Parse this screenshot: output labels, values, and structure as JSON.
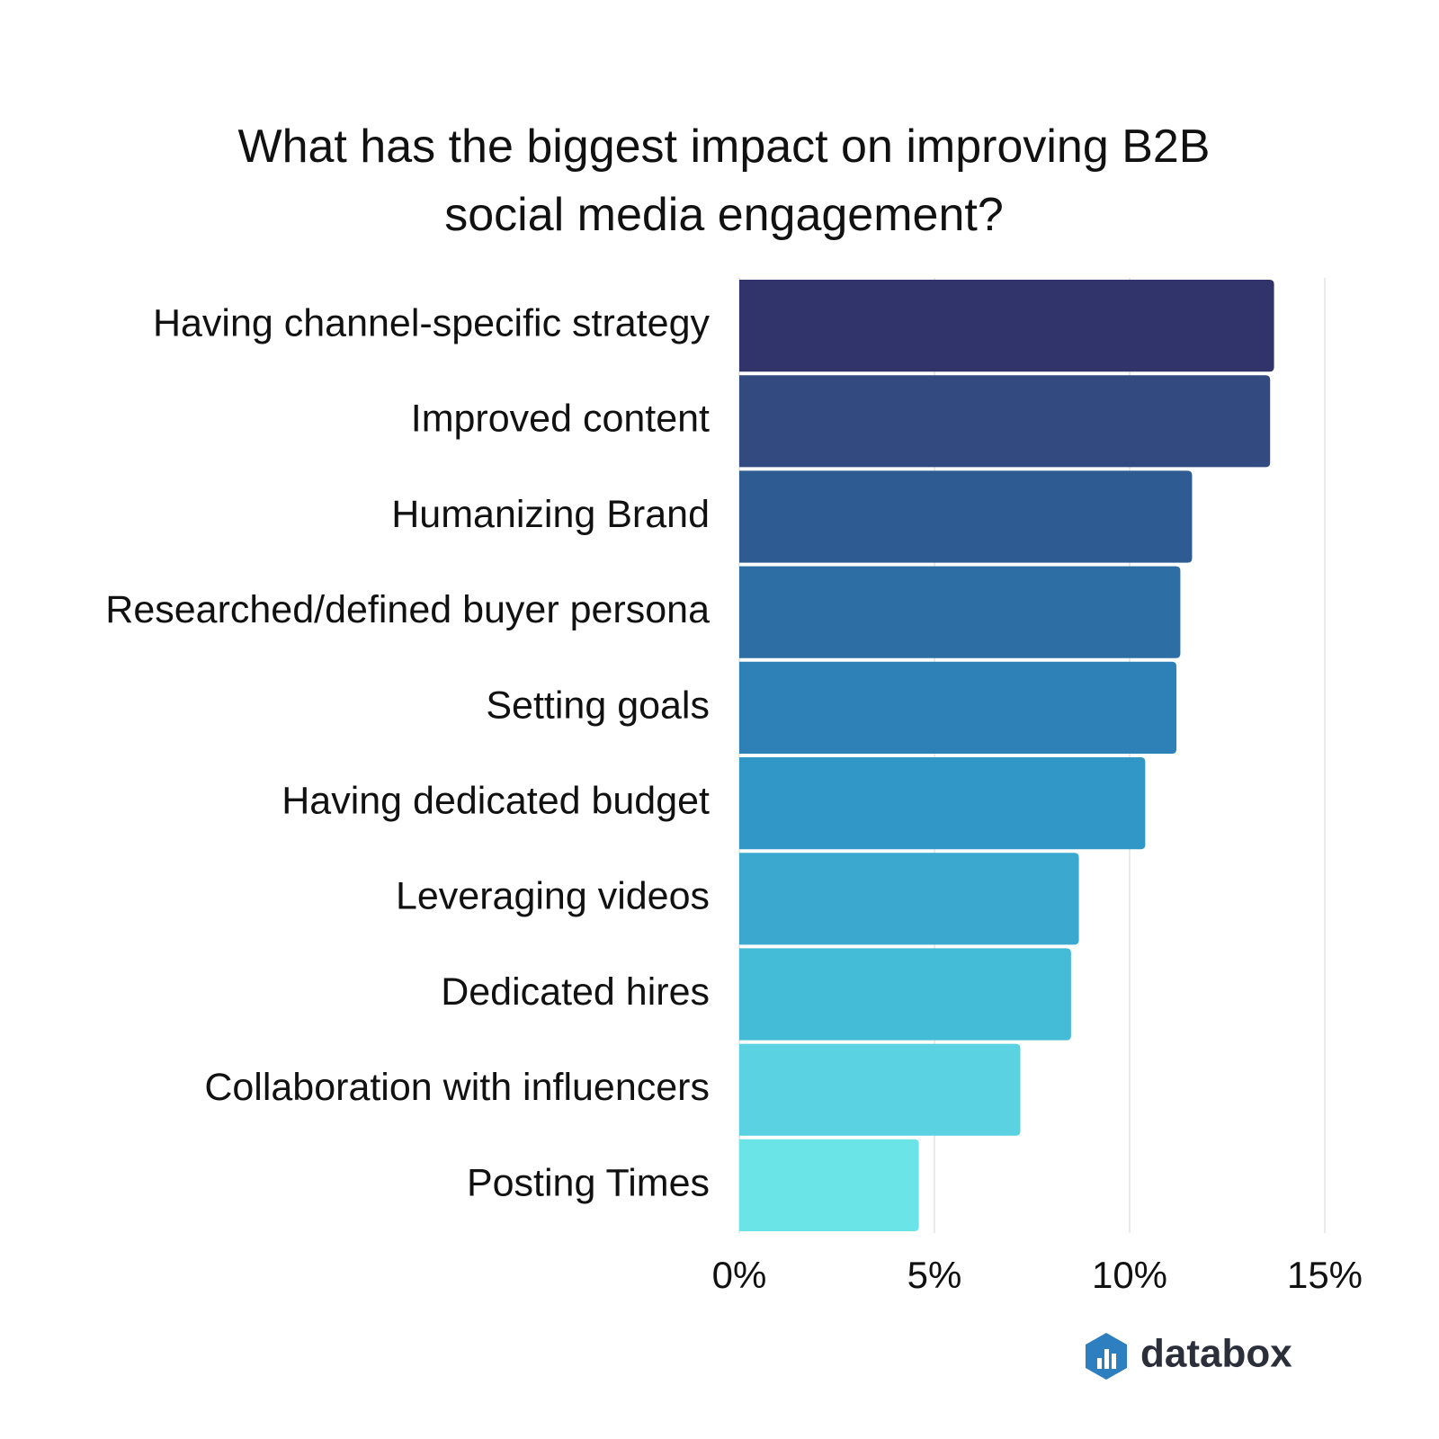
{
  "chart_data": {
    "type": "bar",
    "orientation": "horizontal",
    "title": "What has the biggest impact on improving B2B social media engagement?",
    "categories": [
      "Having channel-specific strategy",
      "Improved content",
      "Humanizing Brand",
      "Researched/defined buyer persona",
      "Setting goals",
      "Having dedicated budget",
      "Leveraging videos",
      "Dedicated hires",
      "Collaboration with influencers",
      "Posting Times"
    ],
    "values": [
      13.7,
      13.6,
      11.6,
      11.3,
      11.2,
      10.4,
      8.7,
      8.5,
      7.2,
      4.6
    ],
    "colors": [
      "#31336b",
      "#324a80",
      "#2e5b92",
      "#2d6ea4",
      "#2e81b6",
      "#3097c6",
      "#3aa8cf",
      "#45bcd7",
      "#5ad2e1",
      "#6be4e8"
    ],
    "xlim": [
      0,
      15
    ],
    "xticks": [
      {
        "value": 0,
        "label": "0%"
      },
      {
        "value": 5,
        "label": "5%"
      },
      {
        "value": 10,
        "label": "10%"
      },
      {
        "value": 15,
        "label": "15%"
      }
    ],
    "grid": true,
    "brand": "databox"
  }
}
